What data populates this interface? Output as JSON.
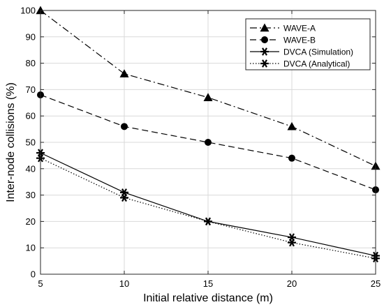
{
  "chart_data": {
    "type": "line",
    "xlabel": "Initial relative distance (m)",
    "ylabel": "Inter-node collisions (%)",
    "xlim": [
      5,
      25
    ],
    "ylim": [
      0,
      100
    ],
    "xticks": [
      5,
      10,
      15,
      20,
      25
    ],
    "yticks": [
      0,
      10,
      20,
      30,
      40,
      50,
      60,
      70,
      80,
      90,
      100
    ],
    "grid": true,
    "legend_position": "top-right",
    "x": [
      5,
      10,
      15,
      20,
      25
    ],
    "series": [
      {
        "name": "WAVE-A",
        "values": [
          100,
          76,
          67,
          56,
          41
        ],
        "marker": "triangle",
        "line_style": "dash-dot",
        "color": "#000000"
      },
      {
        "name": "WAVE-B",
        "values": [
          68,
          56,
          50,
          44,
          32
        ],
        "marker": "circle",
        "line_style": "dashed",
        "color": "#000000"
      },
      {
        "name": "DVCA (Simulation)",
        "values": [
          46,
          31,
          20,
          14,
          7
        ],
        "marker": "star",
        "line_style": "solid",
        "color": "#000000"
      },
      {
        "name": "DVCA (Analytical)",
        "values": [
          44,
          29,
          20,
          12,
          6
        ],
        "marker": "star",
        "line_style": "dotted",
        "color": "#000000"
      }
    ]
  }
}
